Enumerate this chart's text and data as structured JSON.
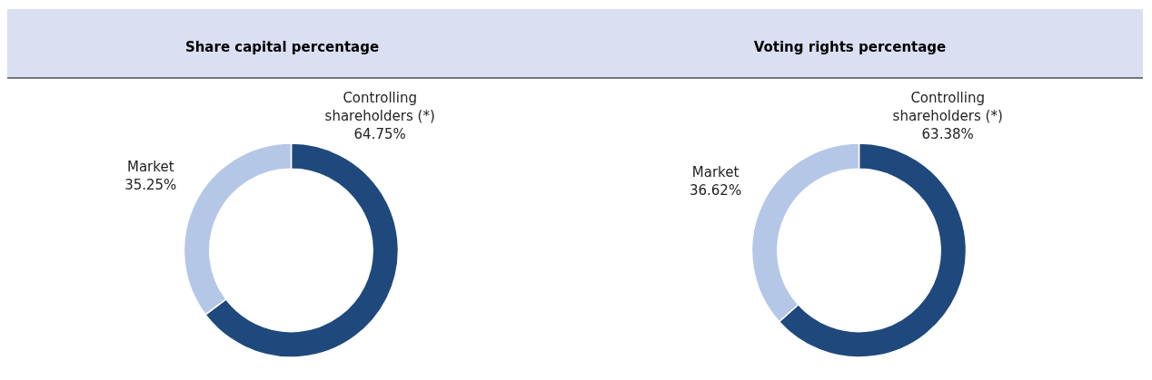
{
  "chart_data": [
    {
      "type": "donut",
      "title": "Share capital percentage",
      "categories": [
        "Controlling shareholders (*)",
        "Market"
      ],
      "values": [
        64.75,
        35.25
      ],
      "colors": [
        "#1f497d",
        "#b4c7e7"
      ],
      "value_labels": [
        "64.75%",
        "35.25%"
      ]
    },
    {
      "type": "donut",
      "title": "Voting rights percentage",
      "categories": [
        "Controlling shareholders (*)",
        "Market"
      ],
      "values": [
        63.38,
        36.62
      ],
      "colors": [
        "#1f497d",
        "#b4c7e7"
      ],
      "value_labels": [
        "63.38%",
        "36.62%"
      ]
    }
  ]
}
